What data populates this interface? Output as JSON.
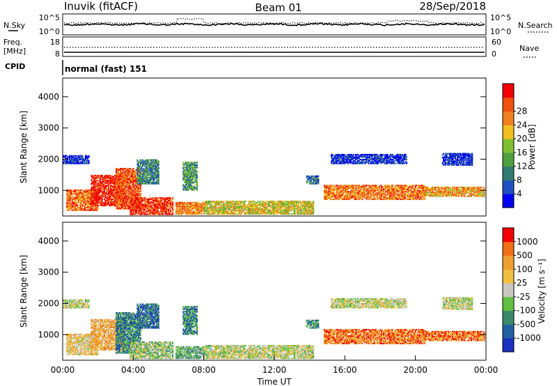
{
  "header": {
    "station": "Inuvik (fitACF)",
    "beam": "Beam 01",
    "date": "28/Sep/2018"
  },
  "top_panels": {
    "noise": {
      "left_label": "N.Sky",
      "right_label": "N.Search",
      "ticks": [
        "10^5",
        "10^0"
      ]
    },
    "freq": {
      "left_label_1": "Freq.",
      "left_label_2": "[MHz]",
      "right_label": "Nave",
      "left_ticks": [
        "18",
        "8"
      ],
      "right_ticks": [
        "60",
        "0"
      ]
    },
    "cpid": {
      "label": "CPID",
      "value": "normal (fast) 151"
    }
  },
  "chart_data": [
    {
      "type": "heatmap",
      "name": "power",
      "ylabel": "Slant Range [km]",
      "ylim": [
        180,
        4600
      ],
      "yticks": [
        "1000",
        "2000",
        "3000",
        "4000"
      ],
      "xlim": [
        0,
        24
      ],
      "colorbar_label": "Power [dB]",
      "colorbar_ticks": [
        "4",
        "8",
        "12",
        "16",
        "20",
        "24",
        "28"
      ],
      "colors": [
        "#0000f0",
        "#2050c0",
        "#307a70",
        "#50a040",
        "#80c030",
        "#f0c020",
        "#f08020",
        "#f05010",
        "#f00000"
      ],
      "blobs": [
        {
          "t0": 0.2,
          "t1": 2.0,
          "r0": 350,
          "r1": 1000,
          "level": 0.78
        },
        {
          "t0": 1.6,
          "t1": 3.5,
          "r0": 500,
          "r1": 1500,
          "level": 0.92
        },
        {
          "t0": 3.0,
          "t1": 4.4,
          "r0": 400,
          "r1": 1700,
          "level": 0.82
        },
        {
          "t0": 3.8,
          "t1": 6.2,
          "r0": 220,
          "r1": 750,
          "level": 0.88
        },
        {
          "t0": 4.2,
          "t1": 5.4,
          "r0": 1200,
          "r1": 2000,
          "level": 0.3
        },
        {
          "t0": 6.4,
          "t1": 8.0,
          "r0": 230,
          "r1": 600,
          "level": 0.72
        },
        {
          "t0": 6.8,
          "t1": 7.6,
          "r0": 1000,
          "r1": 1900,
          "level": 0.35
        },
        {
          "t0": 8.0,
          "t1": 14.2,
          "r0": 230,
          "r1": 650,
          "level": 0.58
        },
        {
          "t0": 14.8,
          "t1": 20.5,
          "r0": 700,
          "r1": 1150,
          "level": 0.75
        },
        {
          "t0": 20.5,
          "t1": 23.9,
          "r0": 800,
          "r1": 1100,
          "level": 0.68
        },
        {
          "t0": 15.2,
          "t1": 19.5,
          "r0": 1850,
          "r1": 2150,
          "level": 0.1
        },
        {
          "t0": 21.5,
          "t1": 23.2,
          "r0": 1800,
          "r1": 2200,
          "level": 0.12
        },
        {
          "t0": 0.0,
          "t1": 1.5,
          "r0": 1850,
          "r1": 2100,
          "level": 0.1
        },
        {
          "t0": 13.8,
          "t1": 14.5,
          "r0": 1200,
          "r1": 1450,
          "level": 0.25
        }
      ]
    },
    {
      "type": "heatmap",
      "name": "velocity",
      "ylabel": "Slant Range [km]",
      "ylim": [
        180,
        4600
      ],
      "yticks": [
        "1000",
        "2000",
        "3000",
        "4000"
      ],
      "xlim": [
        0,
        24
      ],
      "xticks": [
        "00:00",
        "04:00",
        "08:00",
        "12:00",
        "16:00",
        "20:00",
        "00:00"
      ],
      "xlabel": "Time UT",
      "colorbar_label": "Velocity [m s⁻¹]",
      "colorbar_ticks": [
        "1000",
        "500",
        "100",
        "25",
        "-25",
        "-100",
        "-500",
        "-1000"
      ],
      "colors": [
        "#1a30c0",
        "#2060a0",
        "#3a8a6a",
        "#60c040",
        "#c8c8c0",
        "#f0c040",
        "#f0a030",
        "#f07018",
        "#f00000"
      ],
      "blobs": [
        {
          "t0": 0.2,
          "t1": 2.0,
          "r0": 350,
          "r1": 1000,
          "level": 0.6
        },
        {
          "t0": 1.6,
          "t1": 3.5,
          "r0": 500,
          "r1": 1500,
          "level": 0.68
        },
        {
          "t0": 3.0,
          "t1": 4.4,
          "r0": 400,
          "r1": 1700,
          "level": 0.25
        },
        {
          "t0": 3.8,
          "t1": 6.2,
          "r0": 220,
          "r1": 750,
          "level": 0.45
        },
        {
          "t0": 4.2,
          "t1": 5.4,
          "r0": 1200,
          "r1": 2000,
          "level": 0.2
        },
        {
          "t0": 6.4,
          "t1": 8.0,
          "r0": 230,
          "r1": 600,
          "level": 0.35
        },
        {
          "t0": 6.8,
          "t1": 7.6,
          "r0": 1000,
          "r1": 1900,
          "level": 0.25
        },
        {
          "t0": 8.0,
          "t1": 14.2,
          "r0": 230,
          "r1": 650,
          "level": 0.5
        },
        {
          "t0": 14.8,
          "t1": 20.5,
          "r0": 700,
          "r1": 1150,
          "level": 0.8
        },
        {
          "t0": 20.5,
          "t1": 23.9,
          "r0": 800,
          "r1": 1100,
          "level": 0.8
        },
        {
          "t0": 15.2,
          "t1": 19.5,
          "r0": 1850,
          "r1": 2150,
          "level": 0.5
        },
        {
          "t0": 21.5,
          "t1": 23.2,
          "r0": 1800,
          "r1": 2200,
          "level": 0.5
        },
        {
          "t0": 0.0,
          "t1": 1.5,
          "r0": 1850,
          "r1": 2100,
          "level": 0.5
        },
        {
          "t0": 13.8,
          "t1": 14.5,
          "r0": 1200,
          "r1": 1450,
          "level": 0.3
        }
      ]
    }
  ]
}
